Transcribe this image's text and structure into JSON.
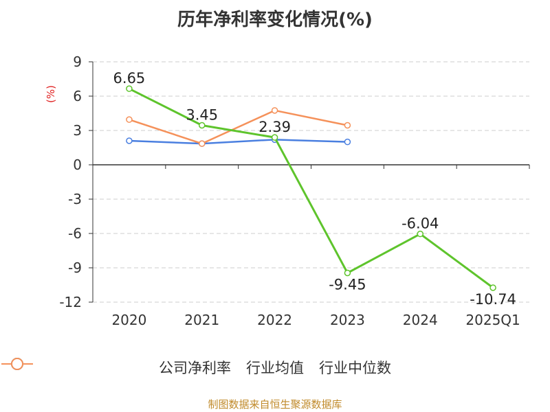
{
  "title": "历年净利率变化情况(%)",
  "source": "制图数据来自恒生聚源数据库",
  "chart_data": {
    "type": "line",
    "title": "历年净利率变化情况(%)",
    "ylabel": "(%)",
    "xlabel": "",
    "categories": [
      "2020",
      "2021",
      "2022",
      "2023",
      "2024",
      "2025Q1"
    ],
    "yticks": [
      9,
      6,
      3,
      0,
      -3,
      -6,
      -9,
      -12
    ],
    "ylim": [
      -12,
      9
    ],
    "grid": true,
    "legend_position": "bottom",
    "series": [
      {
        "name": "公司净利率",
        "color": "#5ec42c",
        "values": [
          6.65,
          3.45,
          2.39,
          -9.45,
          -6.04,
          -10.74
        ],
        "labels": [
          "6.65",
          "3.45",
          "2.39",
          "-9.45",
          "-6.04",
          "-10.74"
        ]
      },
      {
        "name": "行业均值",
        "color": "#4a7fe0",
        "values": [
          2.1,
          1.85,
          2.2,
          2.0,
          null,
          null
        ]
      },
      {
        "name": "行业中位数",
        "color": "#f5915a",
        "values": [
          3.95,
          1.85,
          4.75,
          3.45,
          null,
          null
        ]
      }
    ]
  }
}
